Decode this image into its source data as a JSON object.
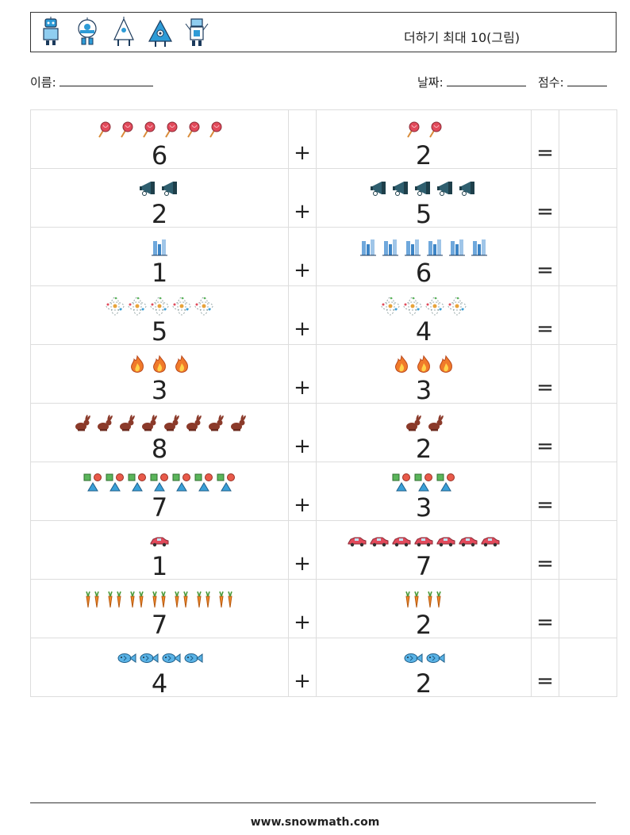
{
  "header": {
    "title": "더하기 최대 10(그림)"
  },
  "labels": {
    "name": "이름:",
    "date": "날짜:",
    "score": "점수:"
  },
  "operators": {
    "plus": "+",
    "equals": "="
  },
  "rows": [
    {
      "a": 6,
      "a_icon": "lollipop-icon",
      "b": 2,
      "b_icon": "lollipop-icon"
    },
    {
      "a": 2,
      "a_icon": "megaphone-icon",
      "b": 5,
      "b_icon": "megaphone-icon"
    },
    {
      "a": 1,
      "a_icon": "skyscraper-icon",
      "b": 6,
      "b_icon": "skyscraper-icon"
    },
    {
      "a": 5,
      "a_icon": "atom-icon",
      "b": 4,
      "b_icon": "atom-icon"
    },
    {
      "a": 3,
      "a_icon": "flame-icon",
      "b": 3,
      "b_icon": "flame-icon"
    },
    {
      "a": 8,
      "a_icon": "rabbit-icon",
      "b": 2,
      "b_icon": "rabbit-icon"
    },
    {
      "a": 7,
      "a_icon": "shapes-icon",
      "b": 3,
      "b_icon": "shapes-icon"
    },
    {
      "a": 1,
      "a_icon": "car-icon",
      "b": 7,
      "b_icon": "car-icon"
    },
    {
      "a": 7,
      "a_icon": "carrot-icon",
      "b": 2,
      "b_icon": "carrot-icon"
    },
    {
      "a": 4,
      "a_icon": "fish-icon",
      "b": 2,
      "b_icon": "fish-icon"
    }
  ],
  "footer": {
    "url": "www.snowmath.com"
  }
}
